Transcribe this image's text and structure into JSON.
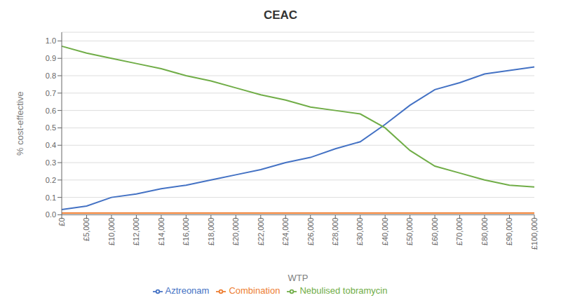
{
  "chart_data": {
    "type": "line",
    "title": "CEAC",
    "xlabel": "WTP",
    "ylabel": "% cost-effective",
    "categories": [
      "£0",
      "£5,000",
      "£10,000",
      "£12,000",
      "£14,000",
      "£16,000",
      "£18,000",
      "£20,000",
      "£22,000",
      "£24,000",
      "£26,000",
      "£28,000",
      "£30,000",
      "£40,000",
      "£50,000",
      "£60,000",
      "£70,000",
      "£80,000",
      "£90,000",
      "£100,000"
    ],
    "series": [
      {
        "name": "Aztreonam",
        "color": "#4472C4",
        "values": [
          0.03,
          0.05,
          0.1,
          0.12,
          0.15,
          0.17,
          0.2,
          0.23,
          0.26,
          0.3,
          0.33,
          0.38,
          0.42,
          0.52,
          0.63,
          0.72,
          0.76,
          0.81,
          0.83,
          0.85
        ]
      },
      {
        "name": "Nebulised tobramycin",
        "color": "#70AD47",
        "values": [
          0.97,
          0.93,
          0.9,
          0.87,
          0.84,
          0.8,
          0.77,
          0.73,
          0.69,
          0.66,
          0.62,
          0.6,
          0.58,
          0.5,
          0.37,
          0.28,
          0.24,
          0.2,
          0.17,
          0.16
        ]
      },
      {
        "name": "Combination",
        "color": "#ED7D31",
        "values": [
          0.01,
          0.01,
          0.01,
          0.01,
          0.01,
          0.01,
          0.01,
          0.01,
          0.01,
          0.01,
          0.01,
          0.01,
          0.01,
          0.01,
          0.01,
          0.01,
          0.01,
          0.01,
          0.01,
          0.01
        ]
      }
    ],
    "ylim": [
      0,
      1.05
    ],
    "yticks": [
      {
        "value": 0,
        "label": "0.0"
      },
      0.1,
      0.2,
      0.3,
      0.4,
      0.5,
      0.6,
      0.7,
      0.8,
      0.9,
      {
        "value": 1,
        "label": "1.0"
      }
    ],
    "grid": true,
    "legend": "bottom"
  }
}
